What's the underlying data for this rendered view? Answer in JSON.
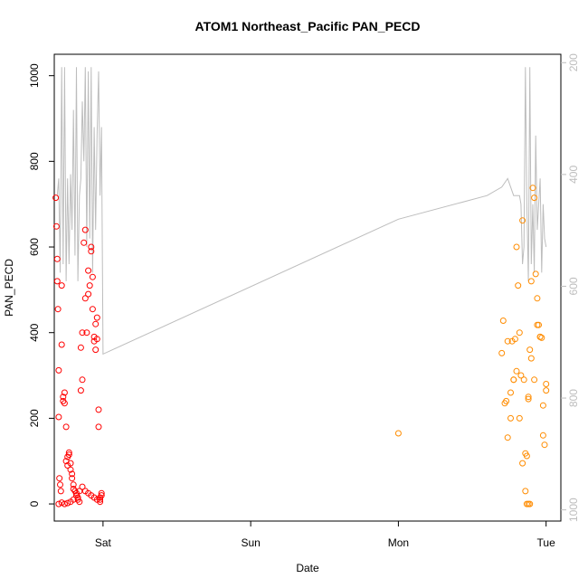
{
  "chart_data": {
    "type": "scatter",
    "title": "ATOM1 Northeast_Pacific PAN_PECD",
    "xlabel": "Date",
    "ylabel": "PAN_PECD",
    "x_ticks": [
      {
        "label": "Sat",
        "value": 1.0
      },
      {
        "label": "Sun",
        "value": 2.0
      },
      {
        "label": "Mon",
        "value": 3.0
      },
      {
        "label": "Tue",
        "value": 4.0
      }
    ],
    "xlim": [
      0.67,
      4.1
    ],
    "ylim": [
      -40,
      1050
    ],
    "y_ticks": [
      0,
      200,
      400,
      600,
      800,
      1000
    ],
    "y2": {
      "label": "",
      "ticks": [
        200,
        400,
        600,
        800,
        1000
      ],
      "range_top": 185,
      "range_bottom": 1020,
      "color": "#bdbdbd"
    },
    "colors": {
      "series_a": "#ff0000",
      "series_b": "#ff8c00",
      "line": "#bdbdbd"
    },
    "series": [
      {
        "name": "red",
        "color": "#ff0000",
        "x": [
          0.68,
          0.685,
          0.69,
          0.69,
          0.695,
          0.7,
          0.7,
          0.705,
          0.71,
          0.715,
          0.72,
          0.72,
          0.73,
          0.73,
          0.74,
          0.74,
          0.75,
          0.75,
          0.76,
          0.76,
          0.77,
          0.77,
          0.78,
          0.78,
          0.79,
          0.79,
          0.8,
          0.8,
          0.81,
          0.82,
          0.82,
          0.83,
          0.83,
          0.84,
          0.85,
          0.85,
          0.86,
          0.86,
          0.87,
          0.88,
          0.88,
          0.89,
          0.9,
          0.9,
          0.91,
          0.92,
          0.92,
          0.93,
          0.93,
          0.94,
          0.94,
          0.95,
          0.95,
          0.96,
          0.96,
          0.97,
          0.97,
          0.98,
          0.98,
          0.99,
          0.99,
          0.7,
          0.72,
          0.74,
          0.76,
          0.78,
          0.8,
          0.82,
          0.84,
          0.86,
          0.88,
          0.9,
          0.92,
          0.94,
          0.96,
          0.98
        ],
        "y": [
          715,
          648,
          572,
          520,
          455,
          312,
          203,
          60,
          45,
          30,
          510,
          372,
          250,
          240,
          235,
          260,
          180,
          100,
          90,
          110,
          120,
          115,
          95,
          80,
          70,
          60,
          45,
          35,
          30,
          25,
          20,
          15,
          10,
          5,
          265,
          365,
          290,
          400,
          610,
          480,
          640,
          400,
          490,
          545,
          510,
          590,
          600,
          530,
          455,
          380,
          390,
          360,
          420,
          435,
          385,
          220,
          180,
          15,
          10,
          20,
          25,
          0,
          3,
          0,
          2,
          5,
          10,
          20,
          30,
          40,
          30,
          25,
          20,
          15,
          10,
          5
        ]
      },
      {
        "name": "orange",
        "color": "#ff8c00",
        "x": [
          3.0,
          3.7,
          3.71,
          3.72,
          3.73,
          3.74,
          3.76,
          3.77,
          3.78,
          3.79,
          3.8,
          3.81,
          3.82,
          3.83,
          3.84,
          3.85,
          3.86,
          3.87,
          3.88,
          3.89,
          3.9,
          3.91,
          3.92,
          3.93,
          3.94,
          3.95,
          3.96,
          3.97,
          3.98,
          3.99,
          4.0,
          4.0,
          3.74,
          3.76,
          3.78,
          3.8,
          3.82,
          3.84,
          3.86,
          3.88,
          3.9,
          3.92,
          3.94,
          3.96,
          3.98,
          3.87,
          3.88,
          3.89
        ],
        "y": [
          165,
          352,
          428,
          235,
          240,
          155,
          260,
          380,
          290,
          385,
          600,
          510,
          400,
          300,
          662,
          290,
          118,
          112,
          250,
          360,
          520,
          738,
          715,
          537,
          480,
          418,
          390,
          388,
          230,
          138,
          280,
          265,
          380,
          200,
          290,
          310,
          200,
          95,
          30,
          245,
          340,
          290,
          418,
          390,
          160,
          0,
          0,
          0
        ]
      }
    ],
    "line_series": {
      "name": "gray",
      "color": "#bdbdbd",
      "x": [
        0.69,
        0.7,
        0.71,
        0.72,
        0.73,
        0.74,
        0.75,
        0.76,
        0.77,
        0.78,
        0.79,
        0.8,
        0.81,
        0.82,
        0.83,
        0.84,
        0.85,
        0.86,
        0.87,
        0.88,
        0.89,
        0.9,
        0.91,
        0.92,
        0.93,
        0.94,
        0.95,
        0.96,
        0.97,
        0.98,
        0.99,
        1.0,
        3.0,
        3.6,
        3.7,
        3.72,
        3.74,
        3.76,
        3.78,
        3.8,
        3.82,
        3.83,
        3.84,
        3.85,
        3.86,
        3.87,
        3.88,
        3.89,
        3.9,
        3.91,
        3.92,
        3.93,
        3.94,
        3.95,
        3.96,
        3.97,
        3.98,
        3.99,
        4.0
      ],
      "y": [
        720,
        760,
        540,
        1020,
        560,
        1020,
        520,
        760,
        560,
        770,
        640,
        920,
        580,
        1020,
        520,
        720,
        760,
        940,
        800,
        1020,
        600,
        1010,
        620,
        1020,
        540,
        880,
        640,
        860,
        1010,
        720,
        880,
        350,
        665,
        720,
        740,
        750,
        760,
        740,
        720,
        720,
        720,
        700,
        560,
        600,
        1020,
        700,
        520,
        1020,
        560,
        700,
        540,
        860,
        640,
        700,
        760,
        540,
        700,
        620,
        600
      ],
      "segments_note": "connected"
    }
  }
}
